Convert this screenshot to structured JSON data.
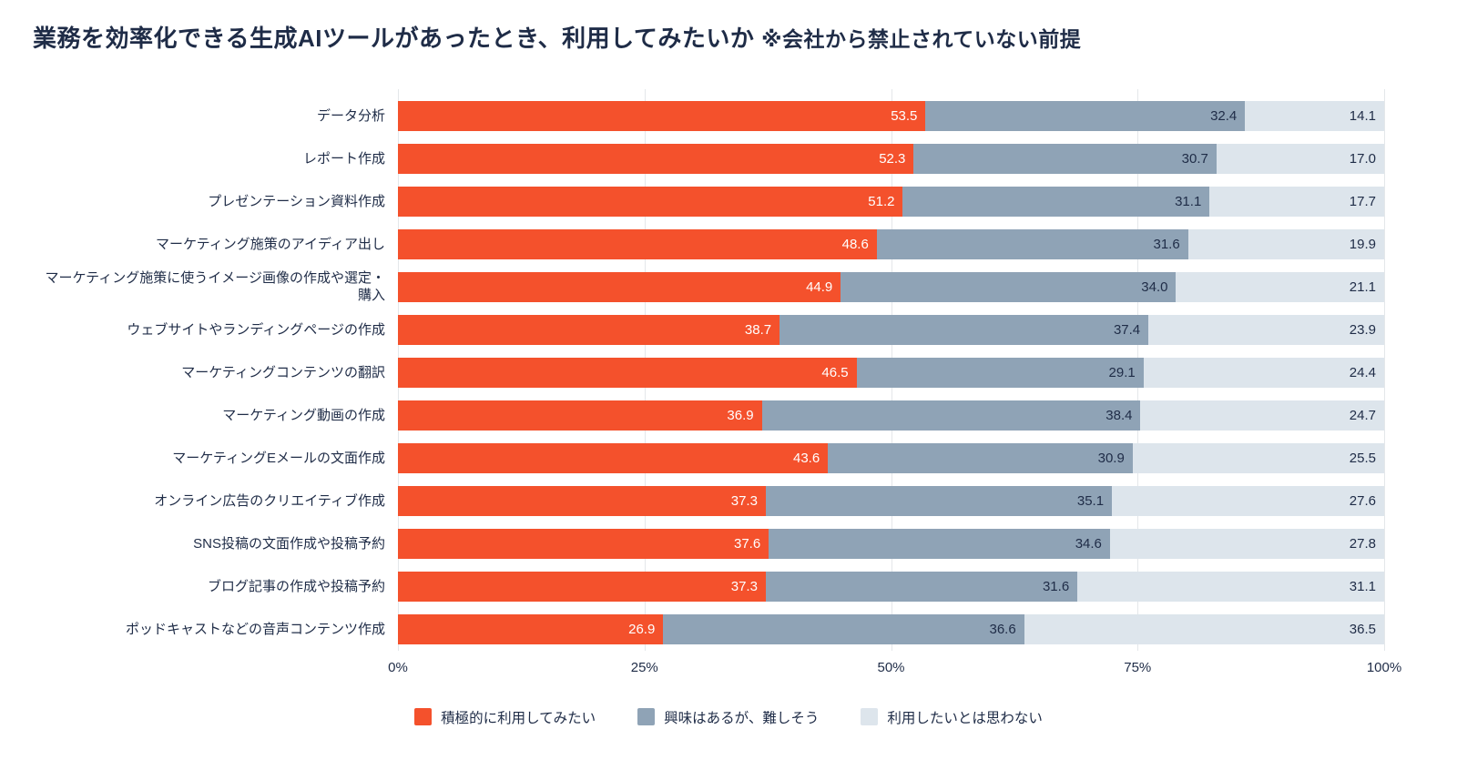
{
  "title": {
    "main": "業務を効率化できる生成AIツールがあったとき、利用してみたいか",
    "note": "※会社から禁止されていない前提"
  },
  "chart_data": {
    "type": "bar",
    "orientation": "horizontal",
    "stacked": true,
    "title": "業務を効率化できる生成AIツールがあったとき、利用してみたいか ※会社から禁止されていない前提",
    "categories": [
      "データ分析",
      "レポート作成",
      "プレゼンテーション資料作成",
      "マーケティング施策のアイディア出し",
      "マーケティング施策に使うイメージ画像の作成や選定・購入",
      "ウェブサイトやランディングページの作成",
      "マーケティングコンテンツの翻訳",
      "マーケティング動画の作成",
      "マーケティングEメールの文面作成",
      "オンライン広告のクリエイティブ作成",
      "SNS投稿の文面作成や投稿予約",
      "ブログ記事の作成や投稿予約",
      "ポッドキャストなどの音声コンテンツ作成"
    ],
    "series": [
      {
        "name": "積極的に利用してみたい",
        "color": "#F4512C",
        "value_text_color": "#FFFFFF",
        "values": [
          53.5,
          52.3,
          51.2,
          48.6,
          44.9,
          38.7,
          46.5,
          36.9,
          43.6,
          37.3,
          37.6,
          37.3,
          26.9
        ]
      },
      {
        "name": "興味はあるが、難しそう",
        "color": "#8FA3B6",
        "value_text_color": "#1F2C47",
        "values": [
          32.4,
          30.7,
          31.1,
          31.6,
          34.0,
          37.4,
          29.1,
          38.4,
          30.9,
          35.1,
          34.6,
          31.6,
          36.6
        ]
      },
      {
        "name": "利用したいとは思わない",
        "color": "#DDE5EC",
        "value_text_color": "#1F2C47",
        "values": [
          14.1,
          17.0,
          17.7,
          19.9,
          21.1,
          23.9,
          24.4,
          24.7,
          25.5,
          27.6,
          27.8,
          31.1,
          36.5
        ]
      }
    ],
    "x_ticks": [
      "0%",
      "25%",
      "50%",
      "75%",
      "100%"
    ],
    "x_tick_values": [
      0,
      25,
      50,
      75,
      100
    ],
    "xlim": [
      0,
      100
    ],
    "grid": true,
    "gridline_color": "#E4E7EA",
    "legend_position": "bottom"
  }
}
